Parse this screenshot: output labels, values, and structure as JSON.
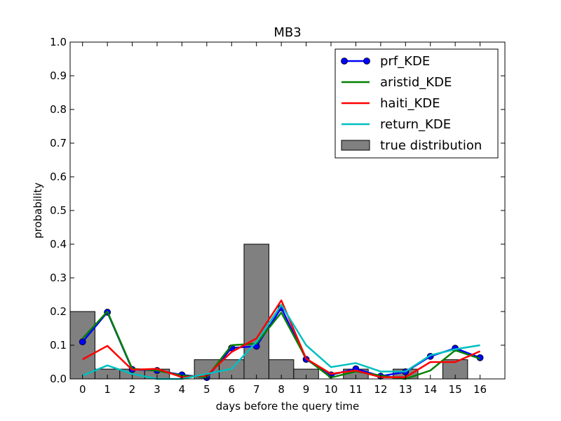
{
  "chart_data": {
    "type": "line",
    "title": "MB3",
    "xlabel": "days before the query time",
    "ylabel": "probability",
    "xlim": [
      -0.5,
      17
    ],
    "ylim": [
      0.0,
      1.0
    ],
    "x_ticks": [
      0,
      1,
      2,
      3,
      4,
      5,
      6,
      7,
      8,
      9,
      10,
      11,
      12,
      13,
      14,
      15,
      16
    ],
    "y_ticks": [
      "0.0",
      "0.1",
      "0.2",
      "0.3",
      "0.4",
      "0.5",
      "0.6",
      "0.7",
      "0.8",
      "0.9",
      "1.0"
    ],
    "grid": false,
    "legend_position": "top-right",
    "histogram": {
      "name": "true distribution",
      "color": "#808080",
      "edges": [
        -0.5,
        0.5,
        1.5,
        2.5,
        3.5,
        4.5,
        5.5,
        6.5,
        7.5,
        8.5,
        9.5,
        10.5,
        11.5,
        12.5,
        13.5,
        14.5,
        15.5
      ],
      "values": [
        0.2,
        0.029,
        0.029,
        0.029,
        0.0,
        0.057,
        0.057,
        0.4,
        0.057,
        0.029,
        0.0,
        0.029,
        0.0,
        0.029,
        0.0,
        0.057
      ]
    },
    "series": [
      {
        "name": "prf_KDE",
        "color": "#0000ff",
        "marker": "circle",
        "x": [
          0,
          1,
          2,
          3,
          4,
          5,
          6,
          7,
          8,
          9,
          10,
          11,
          12,
          13,
          14,
          15,
          16
        ],
        "values": [
          0.11,
          0.198,
          0.028,
          0.025,
          0.012,
          0.004,
          0.092,
          0.097,
          0.211,
          0.058,
          0.012,
          0.03,
          0.008,
          0.021,
          0.067,
          0.091,
          0.063
        ]
      },
      {
        "name": "aristid_KDE",
        "color": "#008000",
        "x": [
          0,
          1,
          2,
          3,
          4,
          5,
          6,
          7,
          8,
          9,
          10,
          11,
          12,
          13,
          14,
          15,
          16
        ],
        "values": [
          0.12,
          0.2,
          0.03,
          0.025,
          0.01,
          0.005,
          0.1,
          0.105,
          0.197,
          0.06,
          0.004,
          0.022,
          0.01,
          0.0,
          0.025,
          0.085,
          0.06
        ]
      },
      {
        "name": "haiti_KDE",
        "color": "#ff0000",
        "x": [
          0,
          1,
          2,
          3,
          4,
          5,
          6,
          7,
          8,
          9,
          10,
          11,
          12,
          13,
          14,
          15,
          16
        ],
        "values": [
          0.058,
          0.098,
          0.027,
          0.03,
          0.005,
          0.01,
          0.08,
          0.12,
          0.233,
          0.06,
          0.015,
          0.025,
          0.005,
          0.005,
          0.05,
          0.05,
          0.082
        ]
      },
      {
        "name": "return_KDE",
        "color": "#00bfbf",
        "x": [
          0,
          1,
          2,
          3,
          4,
          5,
          6,
          7,
          8,
          9,
          10,
          11,
          12,
          13,
          14,
          15,
          16
        ],
        "values": [
          0.01,
          0.04,
          0.015,
          0.0,
          0.0,
          0.015,
          0.03,
          0.11,
          0.22,
          0.1,
          0.035,
          0.047,
          0.022,
          0.022,
          0.07,
          0.088,
          0.1
        ]
      }
    ]
  }
}
